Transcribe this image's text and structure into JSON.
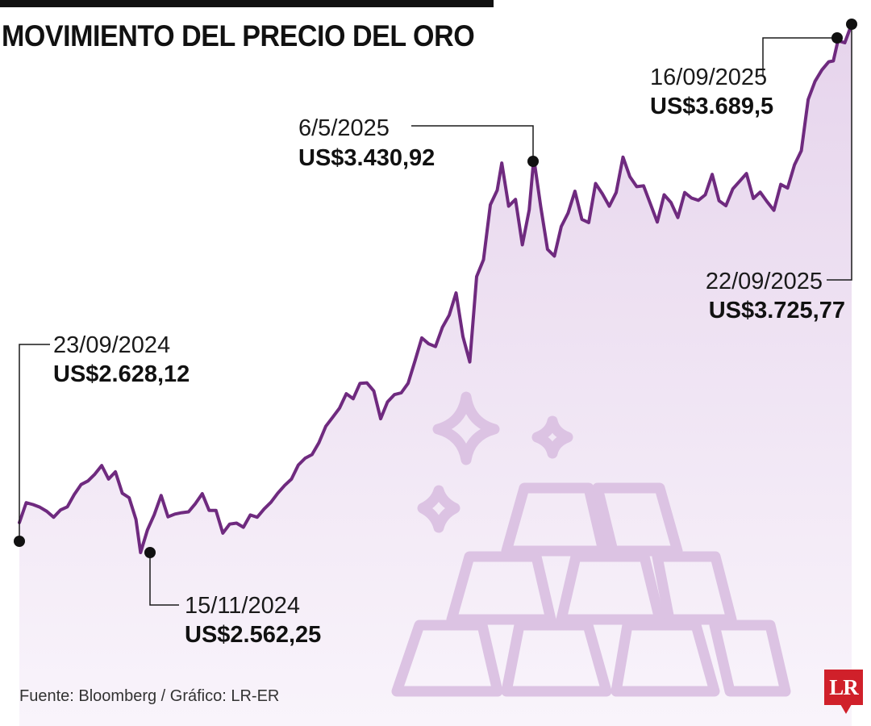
{
  "title": "MOVIMIENTO DEL PRECIO DEL ORO",
  "source": "Fuente: Bloomberg / Gráfico: LR-ER",
  "logo": "LR",
  "colors": {
    "line": "#6f2a7f",
    "area_top": "#e6d4ec",
    "area_bottom": "#f8f2fa",
    "illustration": "#dcc3e3",
    "marker": "#111111",
    "logo": "#d0202a"
  },
  "chart_data": {
    "type": "area",
    "ylim": [
      2540,
      3740
    ],
    "xlim": [
      "23/09/2024",
      "22/09/2025"
    ],
    "series": [
      {
        "points": [
          [
            "23/09/2024",
            2628.12
          ],
          [
            "26/09/2024",
            2672
          ],
          [
            "29/09/2024",
            2668
          ],
          [
            "02/10/2024",
            2662
          ],
          [
            "05/10/2024",
            2653
          ],
          [
            "08/10/2024",
            2640
          ],
          [
            "11/10/2024",
            2656
          ],
          [
            "14/10/2024",
            2663
          ],
          [
            "17/10/2024",
            2690
          ],
          [
            "20/10/2024",
            2712
          ],
          [
            "23/10/2024",
            2720
          ],
          [
            "26/10/2024",
            2735
          ],
          [
            "29/10/2024",
            2754
          ],
          [
            "01/11/2024",
            2724
          ],
          [
            "04/11/2024",
            2740
          ],
          [
            "07/11/2024",
            2693
          ],
          [
            "10/11/2024",
            2683
          ],
          [
            "13/11/2024",
            2635
          ],
          [
            "15/11/2024",
            2562.25
          ],
          [
            "18/11/2024",
            2612
          ],
          [
            "21/11/2024",
            2646
          ],
          [
            "24/11/2024",
            2688
          ],
          [
            "27/11/2024",
            2641
          ],
          [
            "30/11/2024",
            2647
          ],
          [
            "03/12/2024",
            2650
          ],
          [
            "06/12/2024",
            2652
          ],
          [
            "09/12/2024",
            2670
          ],
          [
            "12/12/2024",
            2692
          ],
          [
            "15/12/2024",
            2655
          ],
          [
            "18/12/2024",
            2655
          ],
          [
            "21/12/2024",
            2605
          ],
          [
            "24/12/2024",
            2625
          ],
          [
            "27/12/2024",
            2627
          ],
          [
            "30/12/2024",
            2618
          ],
          [
            "02/01/2025",
            2645
          ],
          [
            "05/01/2025",
            2640
          ],
          [
            "08/01/2025",
            2658
          ],
          [
            "11/01/2025",
            2673
          ],
          [
            "14/01/2025",
            2693
          ],
          [
            "17/01/2025",
            2710
          ],
          [
            "20/01/2025",
            2724
          ],
          [
            "23/01/2025",
            2755
          ],
          [
            "26/01/2025",
            2770
          ],
          [
            "29/01/2025",
            2778
          ],
          [
            "01/02/2025",
            2804
          ],
          [
            "04/02/2025",
            2840
          ],
          [
            "07/02/2025",
            2860
          ],
          [
            "10/02/2025",
            2880
          ],
          [
            "13/02/2025",
            2912
          ],
          [
            "16/02/2025",
            2901
          ],
          [
            "19/02/2025",
            2935
          ],
          [
            "22/02/2025",
            2936
          ],
          [
            "25/02/2025",
            2918
          ],
          [
            "28/02/2025",
            2857
          ],
          [
            "03/03/2025",
            2894
          ],
          [
            "06/03/2025",
            2910
          ],
          [
            "09/03/2025",
            2914
          ],
          [
            "12/03/2025",
            2935
          ],
          [
            "15/03/2025",
            2984
          ],
          [
            "18/03/2025",
            3035
          ],
          [
            "21/03/2025",
            3022
          ],
          [
            "24/03/2025",
            3016
          ],
          [
            "27/03/2025",
            3058
          ],
          [
            "30/03/2025",
            3085
          ],
          [
            "02/04/2025",
            3134
          ],
          [
            "05/04/2025",
            3038
          ],
          [
            "08/04/2025",
            2982
          ],
          [
            "11/04/2025",
            3170
          ],
          [
            "14/04/2025",
            3207
          ],
          [
            "17/04/2025",
            3328
          ],
          [
            "20/04/2025",
            3360
          ],
          [
            "22/04/2025",
            3420
          ],
          [
            "25/04/2025",
            3325
          ],
          [
            "28/04/2025",
            3340
          ],
          [
            "01/05/2025",
            3240
          ],
          [
            "04/05/2025",
            3317
          ],
          [
            "06/05/2025",
            3430.92
          ],
          [
            "09/05/2025",
            3325
          ],
          [
            "12/05/2025",
            3230
          ],
          [
            "15/05/2025",
            3215
          ],
          [
            "18/05/2025",
            3280
          ],
          [
            "21/05/2025",
            3310
          ],
          [
            "24/05/2025",
            3358
          ],
          [
            "27/05/2025",
            3296
          ],
          [
            "30/05/2025",
            3289
          ],
          [
            "02/06/2025",
            3375
          ],
          [
            "05/06/2025",
            3352
          ],
          [
            "08/06/2025",
            3325
          ],
          [
            "11/06/2025",
            3355
          ],
          [
            "14/06/2025",
            3433
          ],
          [
            "17/06/2025",
            3390
          ],
          [
            "20/06/2025",
            3368
          ],
          [
            "23/06/2025",
            3370
          ],
          [
            "26/06/2025",
            3330
          ],
          [
            "29/06/2025",
            3290
          ],
          [
            "02/07/2025",
            3350
          ],
          [
            "05/07/2025",
            3333
          ],
          [
            "08/07/2025",
            3300
          ],
          [
            "11/07/2025",
            3355
          ],
          [
            "14/07/2025",
            3343
          ],
          [
            "17/07/2025",
            3338
          ],
          [
            "20/07/2025",
            3350
          ],
          [
            "23/07/2025",
            3395
          ],
          [
            "26/07/2025",
            3337
          ],
          [
            "29/07/2025",
            3326
          ],
          [
            "01/08/2025",
            3363
          ],
          [
            "04/08/2025",
            3380
          ],
          [
            "07/08/2025",
            3397
          ],
          [
            "10/08/2025",
            3342
          ],
          [
            "13/08/2025",
            3356
          ],
          [
            "16/08/2025",
            3335
          ],
          [
            "19/08/2025",
            3316
          ],
          [
            "22/08/2025",
            3373
          ],
          [
            "25/08/2025",
            3365
          ],
          [
            "28/08/2025",
            3416
          ],
          [
            "31/08/2025",
            3447
          ],
          [
            "03/09/2025",
            3560
          ],
          [
            "06/09/2025",
            3600
          ],
          [
            "09/09/2025",
            3625
          ],
          [
            "12/09/2025",
            3643
          ],
          [
            "14/09/2025",
            3645
          ],
          [
            "16/09/2025",
            3689.5
          ],
          [
            "19/09/2025",
            3685
          ],
          [
            "22/09/2025",
            3725.77
          ]
        ]
      }
    ],
    "annotations": [
      {
        "date": "23/09/2024",
        "value": "US$2.628,12"
      },
      {
        "date": "15/11/2024",
        "value": "US$2.562,25"
      },
      {
        "date": "6/5/2025",
        "value": "US$3.430,92"
      },
      {
        "date": "16/09/2025",
        "value": "US$3.689,5"
      },
      {
        "date": "22/09/2025",
        "value": "US$3.725,77"
      }
    ]
  }
}
